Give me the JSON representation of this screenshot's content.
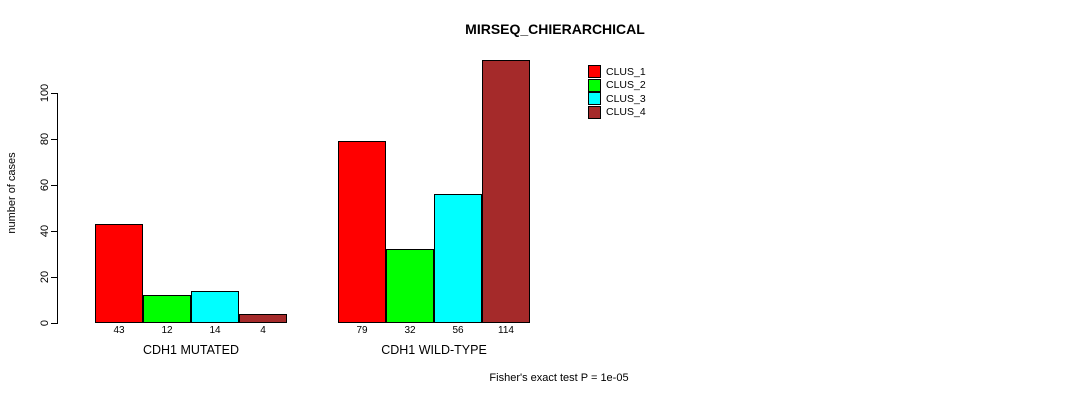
{
  "chart_data": {
    "type": "bar",
    "title": "MIRSEQ_CHIERARCHICAL",
    "ylabel": "number of cases",
    "xlabel": "",
    "footnote": "Fisher's exact test P = 1e-05",
    "categories": [
      "CDH1 MUTATED",
      "CDH1 WILD-TYPE"
    ],
    "series": [
      {
        "name": "CLUS_1",
        "color": "#ff0000",
        "values": [
          43,
          79
        ]
      },
      {
        "name": "CLUS_2",
        "color": "#00ff00",
        "values": [
          12,
          32
        ]
      },
      {
        "name": "CLUS_3",
        "color": "#00ffff",
        "values": [
          14,
          56
        ]
      },
      {
        "name": "CLUS_4",
        "color": "#a52a2a",
        "values": [
          4,
          114
        ]
      }
    ],
    "yticks": [
      0,
      20,
      40,
      60,
      80,
      100
    ],
    "ylim": [
      0,
      100
    ],
    "bar_value_labels": [
      [
        43,
        12,
        14,
        4
      ],
      [
        79,
        32,
        56,
        114
      ]
    ],
    "legend": {
      "position": "top-right-inside",
      "entries": [
        "CLUS_1",
        "CLUS_2",
        "CLUS_3",
        "CLUS_4"
      ]
    },
    "grid": false
  },
  "colors": {
    "background": "#ffffff",
    "axis": "#000000",
    "text": "#000000"
  }
}
